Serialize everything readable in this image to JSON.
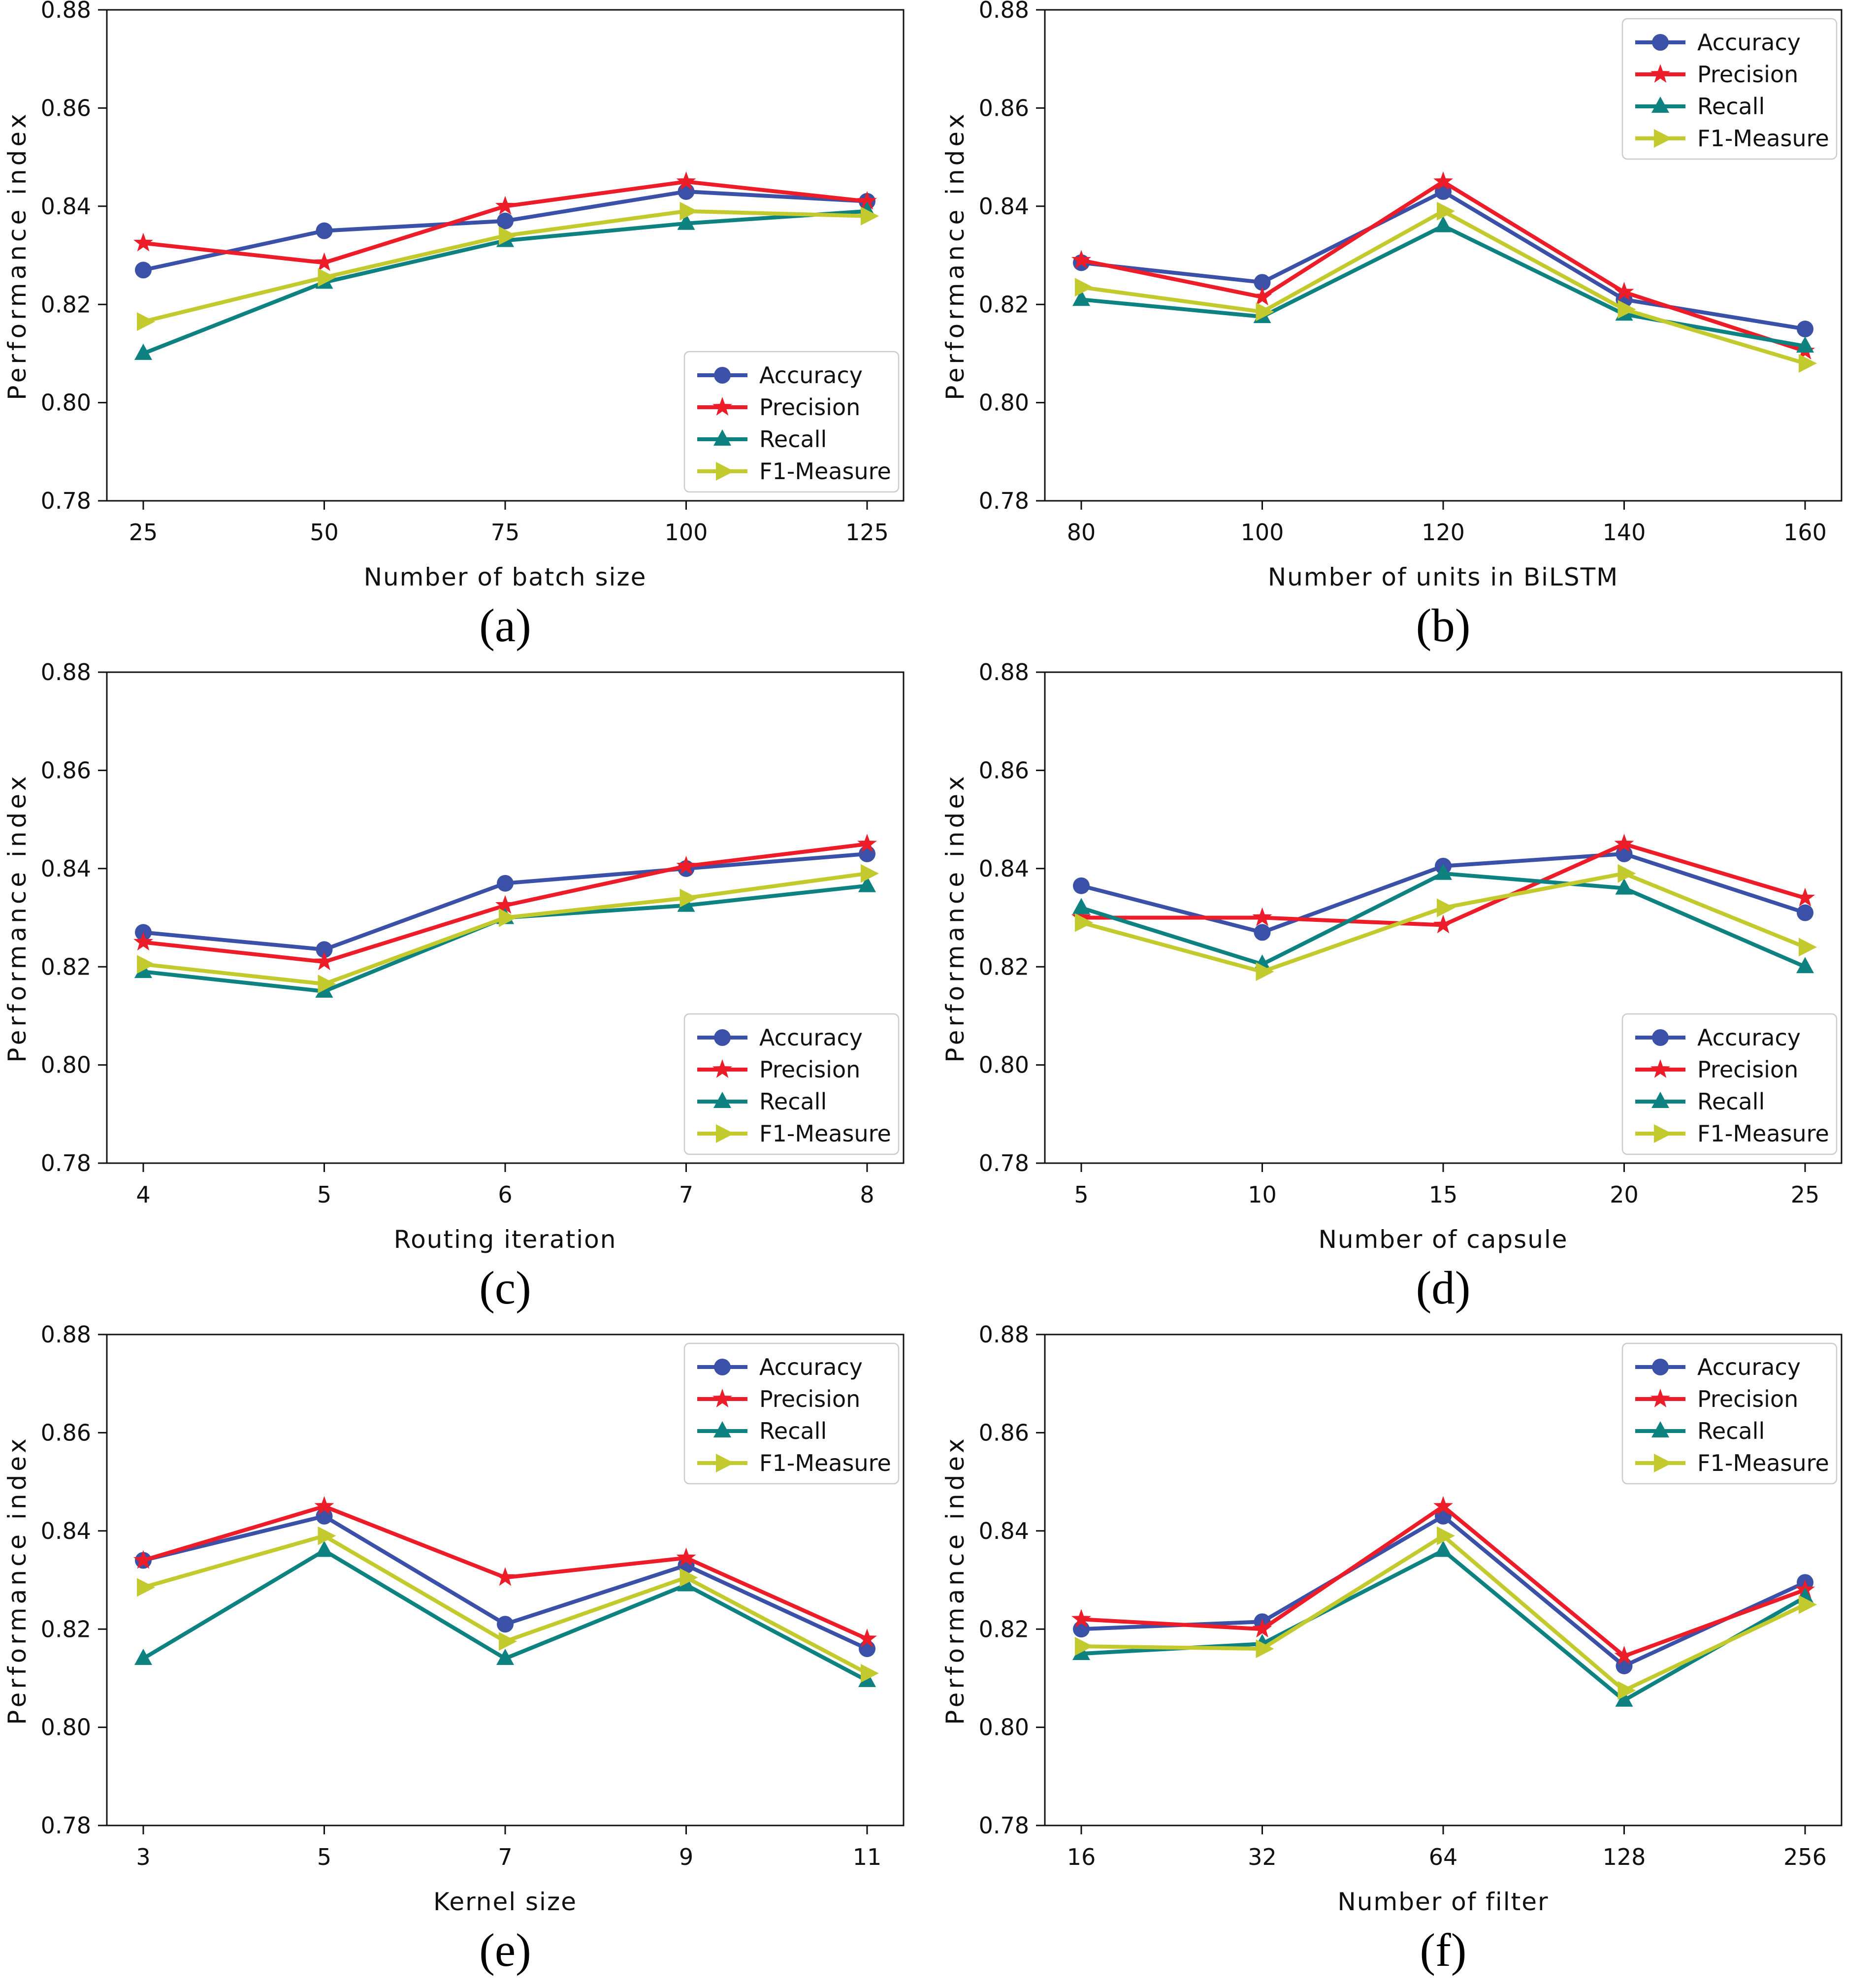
{
  "figure": {
    "background": "#ffffff",
    "y_axis": {
      "label": "Performance index",
      "min": 0.78,
      "max": 0.88,
      "ticks": [
        "0.78",
        "0.80",
        "0.82",
        "0.84",
        "0.86",
        "0.88"
      ]
    },
    "legend": {
      "entries": [
        {
          "name": "Accuracy",
          "color": "#3a51a7",
          "marker": "circle"
        },
        {
          "name": "Precision",
          "color": "#ec1c28",
          "marker": "star"
        },
        {
          "name": "Recall",
          "color": "#0e8181",
          "marker": "triangle-up"
        },
        {
          "name": "F1-Measure",
          "color": "#c3ca2e",
          "marker": "triangle-right"
        }
      ]
    }
  },
  "chart_data": [
    {
      "id": "a",
      "caption": "(a)",
      "type": "line",
      "xlabel": "Number of batch size",
      "ylabel": "Performance index",
      "x": [
        "25",
        "50",
        "75",
        "100",
        "125"
      ],
      "ylim": [
        0.78,
        0.88
      ],
      "grid": false,
      "legend_position": "bottom-right",
      "series": [
        {
          "name": "Accuracy",
          "values": [
            0.827,
            0.835,
            0.837,
            0.843,
            0.841
          ]
        },
        {
          "name": "Precision",
          "values": [
            0.8325,
            0.8285,
            0.84,
            0.845,
            0.841
          ]
        },
        {
          "name": "Recall",
          "values": [
            0.81,
            0.8245,
            0.833,
            0.8365,
            0.839
          ]
        },
        {
          "name": "F1-Measure",
          "values": [
            0.8165,
            0.8255,
            0.834,
            0.839,
            0.838
          ]
        }
      ]
    },
    {
      "id": "b",
      "caption": "(b)",
      "type": "line",
      "xlabel": "Number of units in BiLSTM",
      "ylabel": "Performance index",
      "x": [
        "80",
        "100",
        "120",
        "140",
        "160"
      ],
      "ylim": [
        0.78,
        0.88
      ],
      "grid": false,
      "legend_position": "top-right",
      "series": [
        {
          "name": "Accuracy",
          "values": [
            0.8285,
            0.8245,
            0.843,
            0.821,
            0.815
          ]
        },
        {
          "name": "Precision",
          "values": [
            0.829,
            0.8215,
            0.845,
            0.8225,
            0.8105
          ]
        },
        {
          "name": "Recall",
          "values": [
            0.821,
            0.8175,
            0.836,
            0.818,
            0.8115
          ]
        },
        {
          "name": "F1-Measure",
          "values": [
            0.8235,
            0.8185,
            0.839,
            0.819,
            0.808
          ]
        }
      ]
    },
    {
      "id": "c",
      "caption": "(c)",
      "type": "line",
      "xlabel": "Routing iteration",
      "ylabel": "Performance index",
      "x": [
        "4",
        "5",
        "6",
        "7",
        "8"
      ],
      "ylim": [
        0.78,
        0.88
      ],
      "grid": false,
      "legend_position": "bottom-right",
      "series": [
        {
          "name": "Accuracy",
          "values": [
            0.827,
            0.8235,
            0.837,
            0.84,
            0.843
          ]
        },
        {
          "name": "Precision",
          "values": [
            0.825,
            0.821,
            0.8325,
            0.8405,
            0.845
          ]
        },
        {
          "name": "Recall",
          "values": [
            0.819,
            0.815,
            0.83,
            0.8325,
            0.8365
          ]
        },
        {
          "name": "F1-Measure",
          "values": [
            0.8205,
            0.8165,
            0.83,
            0.834,
            0.839
          ]
        }
      ]
    },
    {
      "id": "d",
      "caption": "(d)",
      "type": "line",
      "xlabel": "Number of capsule",
      "ylabel": "Performance index",
      "x": [
        "5",
        "10",
        "15",
        "20",
        "25"
      ],
      "ylim": [
        0.78,
        0.88
      ],
      "grid": false,
      "legend_position": "bottom-right",
      "series": [
        {
          "name": "Accuracy",
          "values": [
            0.8365,
            0.827,
            0.8405,
            0.843,
            0.831
          ]
        },
        {
          "name": "Precision",
          "values": [
            0.83,
            0.83,
            0.8285,
            0.845,
            0.834
          ]
        },
        {
          "name": "Recall",
          "values": [
            0.832,
            0.8205,
            0.839,
            0.836,
            0.82
          ]
        },
        {
          "name": "F1-Measure",
          "values": [
            0.829,
            0.819,
            0.832,
            0.839,
            0.824
          ]
        }
      ]
    },
    {
      "id": "e",
      "caption": "(e)",
      "type": "line",
      "xlabel": "Kernel size",
      "ylabel": "Performance index",
      "x": [
        "3",
        "5",
        "7",
        "9",
        "11"
      ],
      "ylim": [
        0.78,
        0.88
      ],
      "grid": false,
      "legend_position": "top-right",
      "series": [
        {
          "name": "Accuracy",
          "values": [
            0.834,
            0.843,
            0.821,
            0.833,
            0.816
          ]
        },
        {
          "name": "Precision",
          "values": [
            0.834,
            0.845,
            0.8305,
            0.8345,
            0.818
          ]
        },
        {
          "name": "Recall",
          "values": [
            0.814,
            0.836,
            0.814,
            0.829,
            0.8095
          ]
        },
        {
          "name": "F1-Measure",
          "values": [
            0.8285,
            0.839,
            0.8175,
            0.8305,
            0.811
          ]
        }
      ]
    },
    {
      "id": "f",
      "caption": "(f)",
      "type": "line",
      "xlabel": "Number of filter",
      "ylabel": "Performance index",
      "x": [
        "16",
        "32",
        "64",
        "128",
        "256"
      ],
      "ylim": [
        0.78,
        0.88
      ],
      "grid": false,
      "legend_position": "top-right",
      "series": [
        {
          "name": "Accuracy",
          "values": [
            0.82,
            0.8215,
            0.843,
            0.8125,
            0.8295
          ]
        },
        {
          "name": "Precision",
          "values": [
            0.822,
            0.82,
            0.845,
            0.8145,
            0.828
          ]
        },
        {
          "name": "Recall",
          "values": [
            0.815,
            0.817,
            0.836,
            0.8055,
            0.8265
          ]
        },
        {
          "name": "F1-Measure",
          "values": [
            0.8165,
            0.816,
            0.839,
            0.8075,
            0.825
          ]
        }
      ]
    }
  ]
}
